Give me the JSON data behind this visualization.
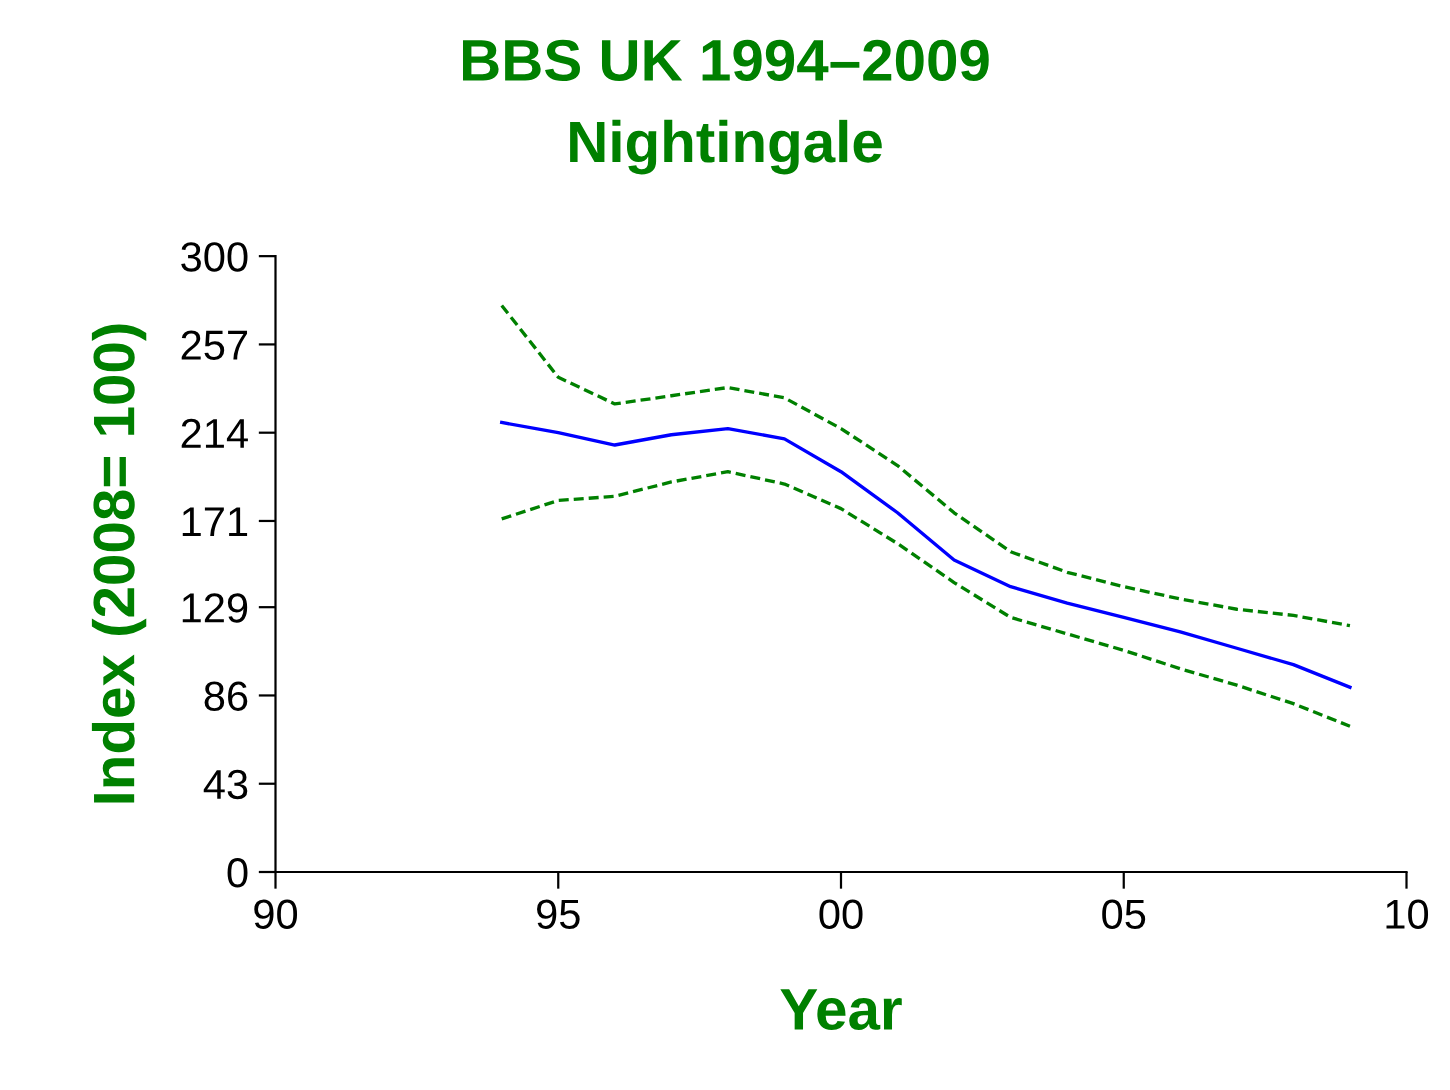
{
  "chart_data": {
    "type": "line",
    "title": "BBS UK 1994–2009",
    "subtitle": "Nightingale",
    "xlabel": "Year",
    "ylabel": "Index (2008= 100)",
    "x": [
      1994,
      1995,
      1996,
      1997,
      1998,
      1999,
      2000,
      2001,
      2002,
      2003,
      2004,
      2005,
      2006,
      2007,
      2008,
      2009
    ],
    "series": [
      {
        "color": "#0000ff",
        "line_style": "solid",
        "values": [
          219,
          214,
          208,
          213,
          216,
          211,
          195,
          175,
          152,
          139,
          131,
          124,
          117,
          109,
          101,
          90
        ]
      },
      {
        "color": "#008000",
        "line_style": "dashed",
        "values": [
          276,
          241,
          228,
          232,
          236,
          231,
          216,
          198,
          175,
          156,
          146,
          139,
          133,
          128,
          125,
          120
        ]
      },
      {
        "color": "#008000",
        "line_style": "dashed",
        "values": [
          172,
          181,
          183,
          190,
          195,
          189,
          177,
          160,
          141,
          124,
          116,
          108,
          99,
          91,
          82,
          71
        ]
      }
    ],
    "xlim": [
      1990,
      2010
    ],
    "xticks": [
      {
        "value": 1990,
        "label": "90"
      },
      {
        "value": 1995,
        "label": "95"
      },
      {
        "value": 2000,
        "label": "00"
      },
      {
        "value": 2005,
        "label": "05"
      },
      {
        "value": 2010,
        "label": "10"
      }
    ],
    "ylim": [
      0,
      300
    ],
    "yticks": [
      0,
      43,
      86,
      129,
      171,
      214,
      257,
      300
    ],
    "grid": false,
    "marker": "none"
  }
}
